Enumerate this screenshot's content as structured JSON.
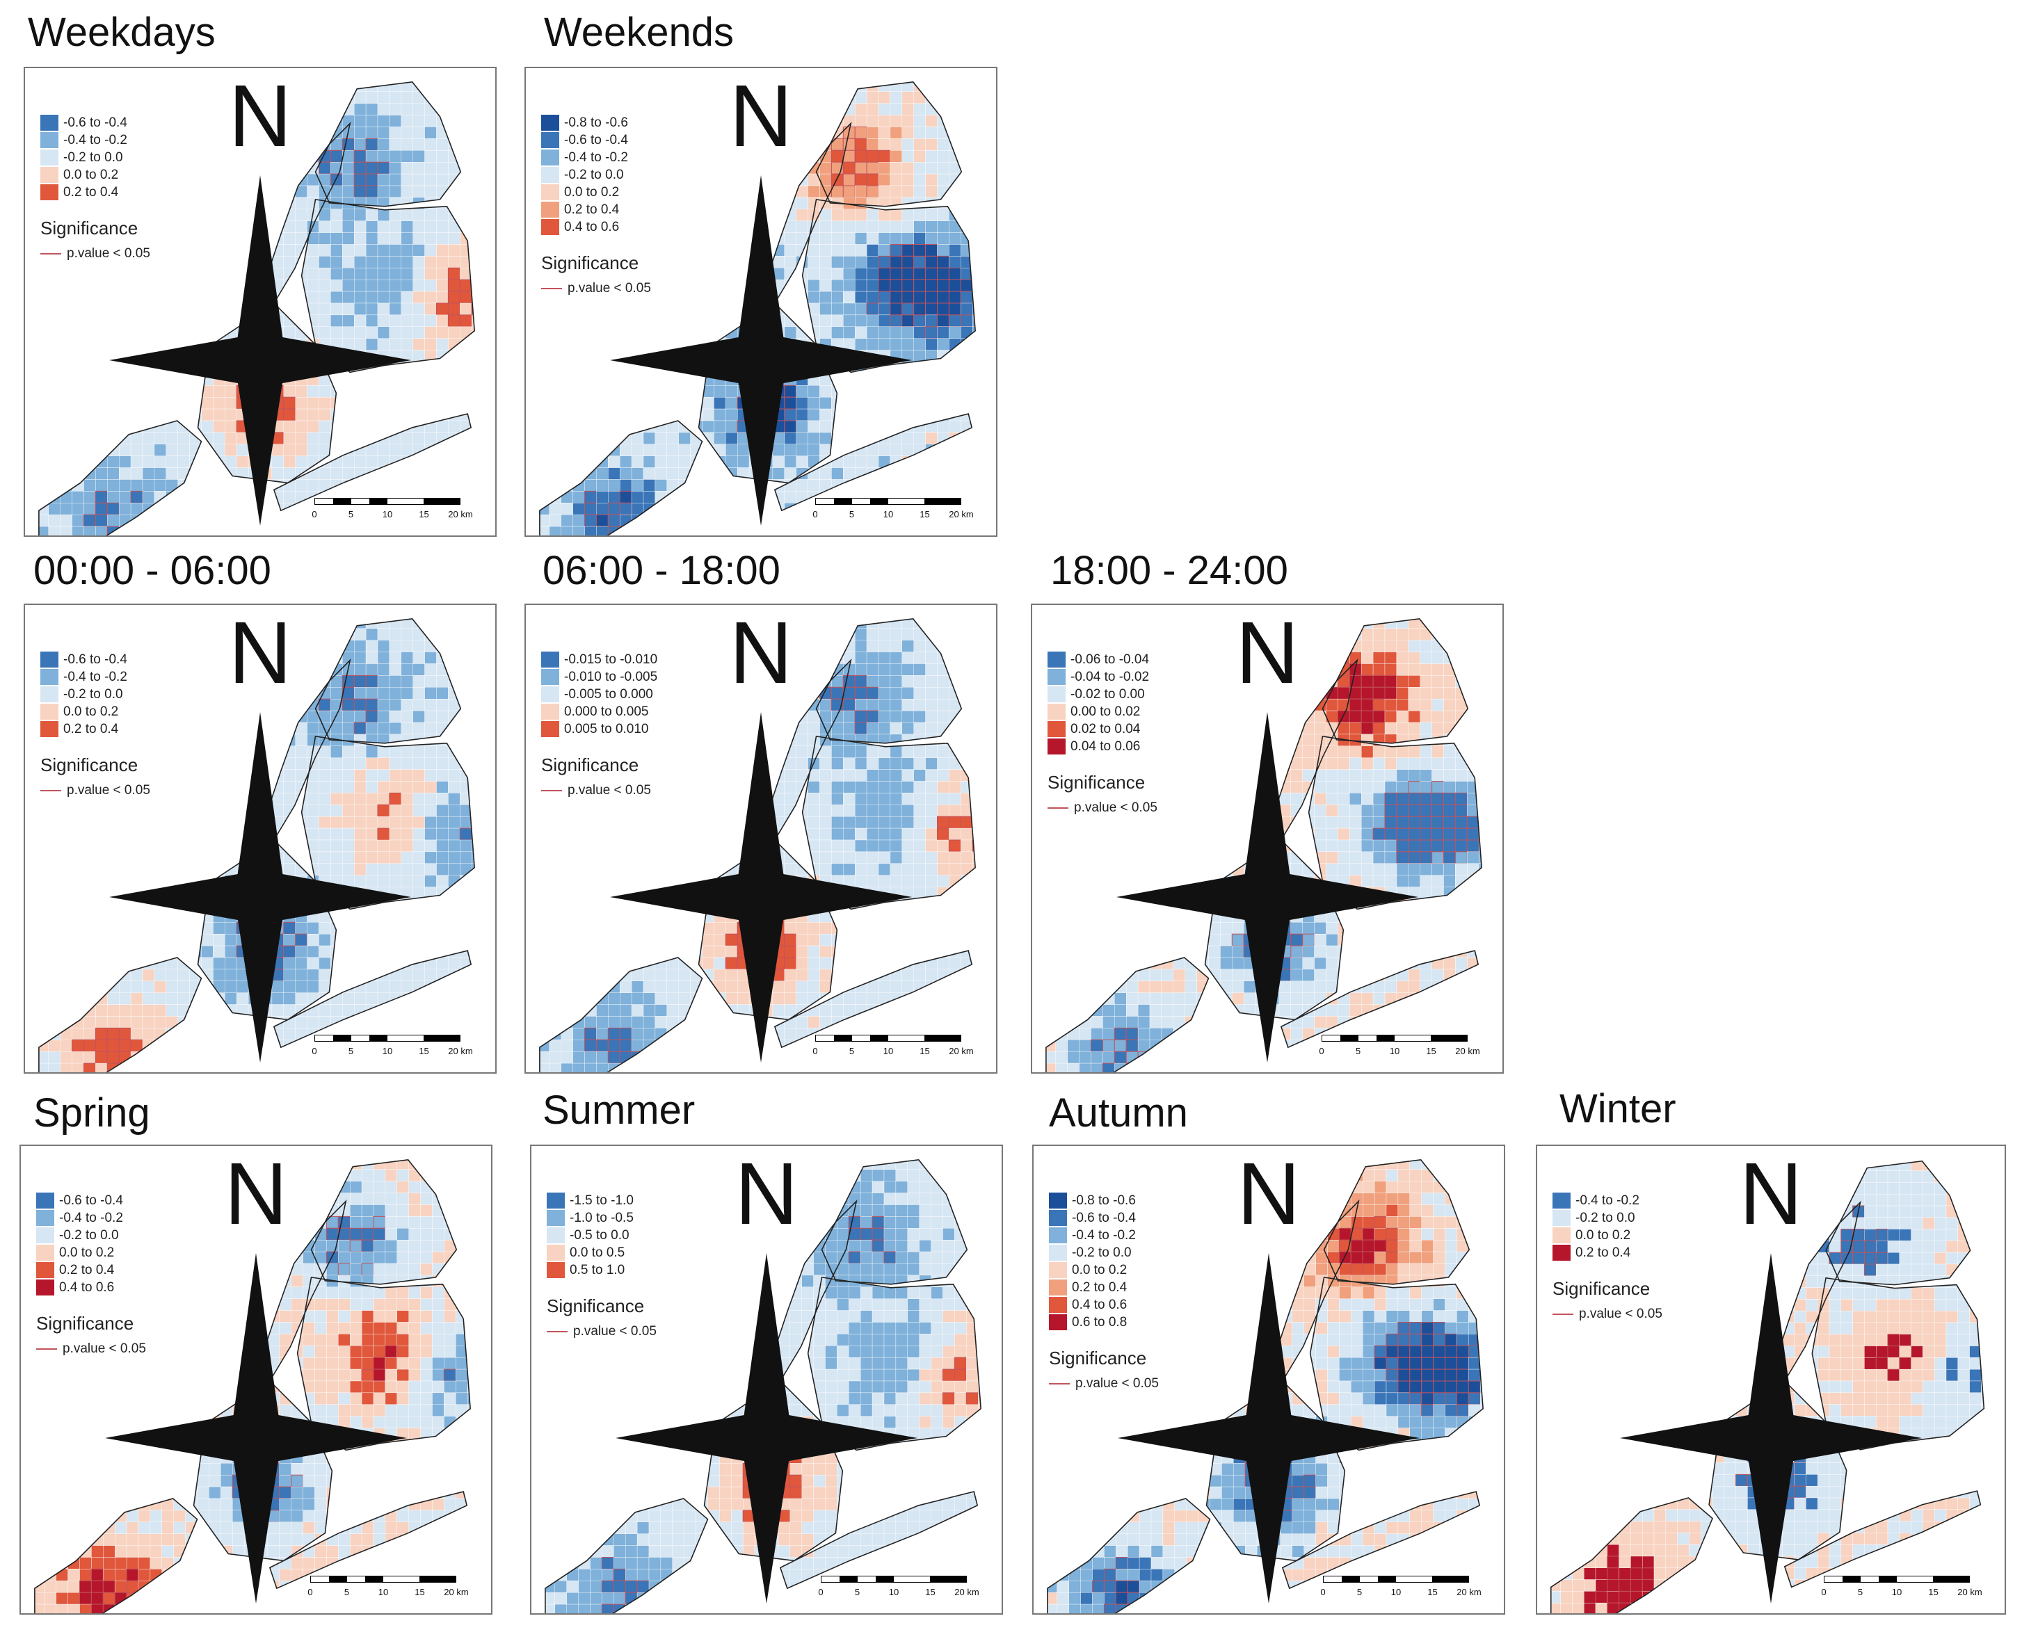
{
  "figure": {
    "significance_title": "Significance",
    "significance_label": "p.value < 0.05",
    "north_label": "N",
    "scale_ticks": [
      "0",
      "5",
      "10",
      "15",
      "20 km"
    ],
    "colors": {
      "blue_dark": "#1b4f9a",
      "blue_mid": "#3a75b8",
      "blue_light": "#7fb1da",
      "blue_pale": "#d7e6f3",
      "red_pale": "#f8d3c1",
      "red_light": "#f0a07d",
      "red_mid": "#e0573c",
      "red_dark": "#b5162b",
      "significance": "#c2545c"
    }
  },
  "panels": [
    {
      "id": "weekdays",
      "title": "Weekdays",
      "legend": [
        {
          "label": "-0.6 to -0.4",
          "color": "#3a75b8"
        },
        {
          "label": "-0.4 to -0.2",
          "color": "#7fb1da"
        },
        {
          "label": "-0.2 to 0.0",
          "color": "#d7e6f3"
        },
        {
          "label": "0.0 to 0.2",
          "color": "#f8d3c1"
        },
        {
          "label": "0.2 to 0.4",
          "color": "#e0573c"
        }
      ]
    },
    {
      "id": "weekends",
      "title": "Weekends",
      "legend": [
        {
          "label": "-0.8 to -0.6",
          "color": "#1b4f9a"
        },
        {
          "label": "-0.6 to -0.4",
          "color": "#3a75b8"
        },
        {
          "label": "-0.4 to -0.2",
          "color": "#7fb1da"
        },
        {
          "label": "-0.2 to 0.0",
          "color": "#d7e6f3"
        },
        {
          "label": "0.0 to 0.2",
          "color": "#f8d3c1"
        },
        {
          "label": "0.2 to 0.4",
          "color": "#f0a07d"
        },
        {
          "label": "0.4 to 0.6",
          "color": "#e0573c"
        }
      ]
    },
    {
      "id": "night",
      "title": "00:00 - 06:00",
      "legend": [
        {
          "label": "-0.6 to -0.4",
          "color": "#3a75b8"
        },
        {
          "label": "-0.4 to -0.2",
          "color": "#7fb1da"
        },
        {
          "label": "-0.2 to 0.0",
          "color": "#d7e6f3"
        },
        {
          "label": "0.0 to 0.2",
          "color": "#f8d3c1"
        },
        {
          "label": "0.2 to 0.4",
          "color": "#e0573c"
        }
      ]
    },
    {
      "id": "day",
      "title": "06:00 - 18:00",
      "legend": [
        {
          "label": "-0.015 to -0.010",
          "color": "#3a75b8"
        },
        {
          "label": "-0.010 to -0.005",
          "color": "#7fb1da"
        },
        {
          "label": "-0.005 to 0.000",
          "color": "#d7e6f3"
        },
        {
          "label": "0.000 to 0.005",
          "color": "#f8d3c1"
        },
        {
          "label": "0.005 to 0.010",
          "color": "#e0573c"
        }
      ]
    },
    {
      "id": "evening",
      "title": "18:00 - 24:00",
      "legend": [
        {
          "label": "-0.06 to -0.04",
          "color": "#3a75b8"
        },
        {
          "label": "-0.04 to -0.02",
          "color": "#7fb1da"
        },
        {
          "label": "-0.02 to 0.00",
          "color": "#d7e6f3"
        },
        {
          "label": "0.00 to 0.02",
          "color": "#f8d3c1"
        },
        {
          "label": "0.02 to 0.04",
          "color": "#e0573c"
        },
        {
          "label": "0.04 to 0.06",
          "color": "#b5162b"
        }
      ]
    },
    {
      "id": "spring",
      "title": "Spring",
      "legend": [
        {
          "label": "-0.6 to -0.4",
          "color": "#3a75b8"
        },
        {
          "label": "-0.4 to -0.2",
          "color": "#7fb1da"
        },
        {
          "label": "-0.2 to 0.0",
          "color": "#d7e6f3"
        },
        {
          "label": "0.0 to 0.2",
          "color": "#f8d3c1"
        },
        {
          "label": "0.2 to 0.4",
          "color": "#e0573c"
        },
        {
          "label": "0.4 to 0.6",
          "color": "#b5162b"
        }
      ]
    },
    {
      "id": "summer",
      "title": "Summer",
      "legend": [
        {
          "label": "-1.5 to -1.0",
          "color": "#3a75b8"
        },
        {
          "label": "-1.0 to -0.5",
          "color": "#7fb1da"
        },
        {
          "label": "-0.5 to 0.0",
          "color": "#d7e6f3"
        },
        {
          "label": "0.0 to 0.5",
          "color": "#f8d3c1"
        },
        {
          "label": "0.5 to 1.0",
          "color": "#e0573c"
        }
      ]
    },
    {
      "id": "autumn",
      "title": "Autumn",
      "legend": [
        {
          "label": "-0.8 to -0.6",
          "color": "#1b4f9a"
        },
        {
          "label": "-0.6 to -0.4",
          "color": "#3a75b8"
        },
        {
          "label": "-0.4 to -0.2",
          "color": "#7fb1da"
        },
        {
          "label": "-0.2 to 0.0",
          "color": "#d7e6f3"
        },
        {
          "label": "0.0 to 0.2",
          "color": "#f8d3c1"
        },
        {
          "label": "0.2 to 0.4",
          "color": "#f0a07d"
        },
        {
          "label": "0.4 to 0.6",
          "color": "#e0573c"
        },
        {
          "label": "0.6 to 0.8",
          "color": "#b5162b"
        }
      ]
    },
    {
      "id": "winter",
      "title": "Winter",
      "legend": [
        {
          "label": "-0.4 to -0.2",
          "color": "#3a75b8"
        },
        {
          "label": "-0.2 to 0.0",
          "color": "#d7e6f3"
        },
        {
          "label": "0.0 to 0.2",
          "color": "#f8d3c1"
        },
        {
          "label": "0.2 to 0.4",
          "color": "#b5162b"
        }
      ]
    }
  ]
}
